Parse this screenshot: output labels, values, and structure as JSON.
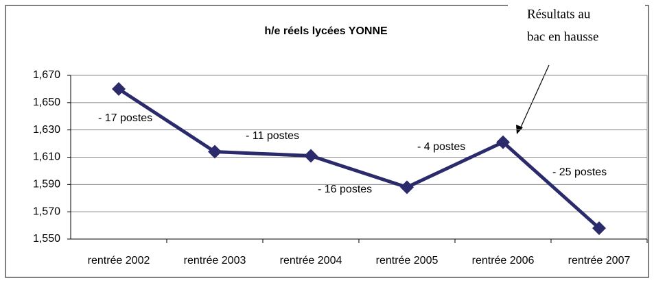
{
  "chart_data": {
    "type": "line",
    "title": "h/e réels lycées YONNE",
    "categories": [
      "rentrée 2002",
      "rentrée 2003",
      "rentrée 2004",
      "rentrée 2005",
      "rentrée 2006",
      "rentrée 2007"
    ],
    "values": [
      1.66,
      1.614,
      1.611,
      1.588,
      1.621,
      1.558
    ],
    "color": "#2b2b6b",
    "ylim": [
      1.55,
      1.67
    ],
    "yticks": [
      {
        "value": 1.55,
        "label": "1,550"
      },
      {
        "value": 1.57,
        "label": "1,570"
      },
      {
        "value": 1.59,
        "label": "1,590"
      },
      {
        "value": 1.61,
        "label": "1,610"
      },
      {
        "value": 1.63,
        "label": "1,630"
      },
      {
        "value": 1.65,
        "label": "1,650"
      },
      {
        "value": 1.67,
        "label": "1,670"
      }
    ],
    "grid": true,
    "annotations": [
      "- 17 postes",
      "- 11 postes",
      "- 16 postes",
      "- 4 postes",
      "- 25 postes"
    ],
    "callout": [
      "Résultats au",
      "bac en hausse"
    ]
  }
}
